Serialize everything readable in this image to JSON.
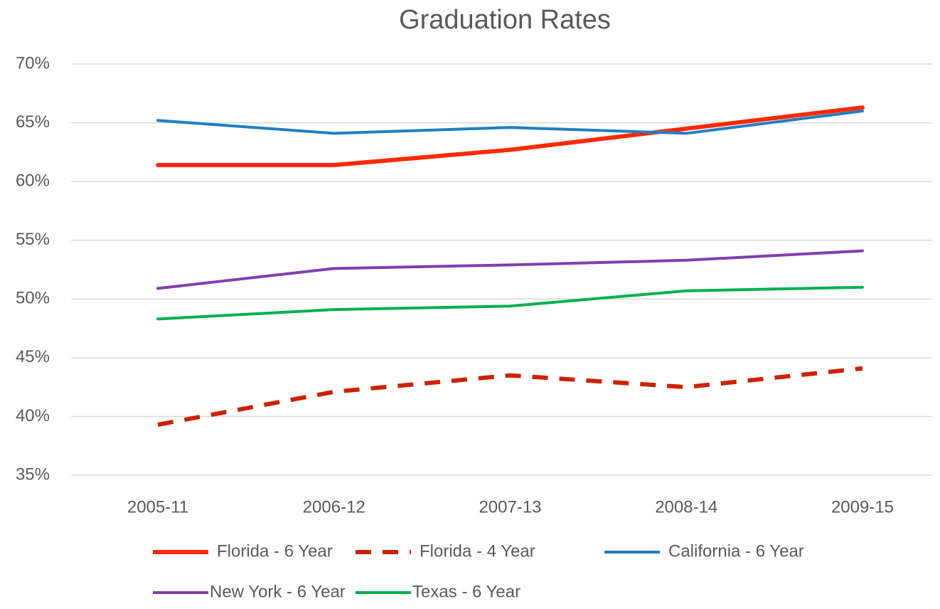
{
  "chart_data": {
    "type": "line",
    "title": "Graduation Rates",
    "categories": [
      "2005-11",
      "2006-12",
      "2007-13",
      "2008-14",
      "2009-15"
    ],
    "series": [
      {
        "name": "Florida - 6 Year",
        "color": "#ff2a00",
        "values": [
          61.4,
          61.4,
          62.7,
          64.5,
          66.3
        ]
      },
      {
        "name": "Florida - 4 Year",
        "color": "#cc2200",
        "dashed": true,
        "values": [
          39.3,
          42.1,
          43.5,
          42.5,
          44.1
        ]
      },
      {
        "name": "California - 6 Year",
        "color": "#1f7fc4",
        "values": [
          65.2,
          64.1,
          64.6,
          64.1,
          66.0
        ]
      },
      {
        "name": "New York - 6 Year",
        "color": "#7f3fb0",
        "values": [
          50.9,
          52.6,
          52.9,
          53.3,
          54.1
        ]
      },
      {
        "name": "Texas - 6 Year",
        "color": "#00b050",
        "values": [
          48.3,
          49.1,
          49.4,
          50.7,
          51.0
        ]
      }
    ],
    "ylim": [
      35,
      70
    ],
    "yticks": [
      {
        "value": 35,
        "label": "35%"
      },
      {
        "value": 40,
        "label": "40%"
      },
      {
        "value": 45,
        "label": "45%"
      },
      {
        "value": 50,
        "label": "50%"
      },
      {
        "value": 55,
        "label": "55%"
      },
      {
        "value": 60,
        "label": "60%"
      },
      {
        "value": 65,
        "label": "65%"
      },
      {
        "value": 70,
        "label": "70%"
      }
    ],
    "grid": true,
    "legend": "bottom"
  }
}
